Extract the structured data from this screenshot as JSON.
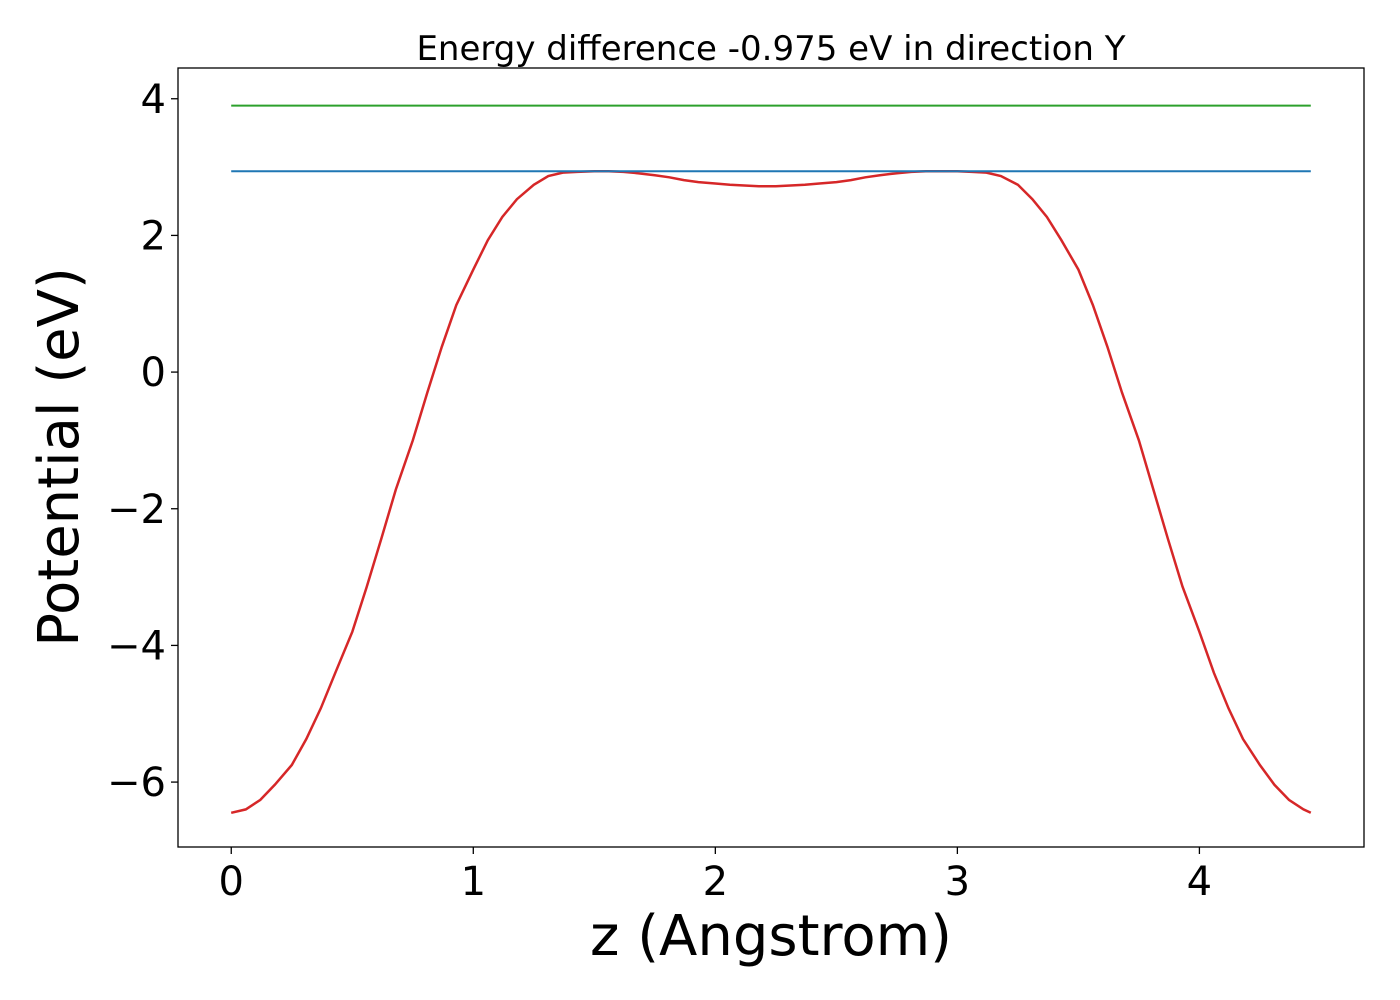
{
  "chart_data": {
    "type": "line",
    "title": "Energy difference -0.975 eV in direction Y",
    "xlabel": "z (Angstrom)",
    "ylabel": "Potential (eV)",
    "xlim": [
      -0.22,
      4.68
    ],
    "ylim": [
      -6.95,
      4.45
    ],
    "xticks": [
      0,
      1,
      2,
      3,
      4
    ],
    "xtick_labels": [
      "0",
      "1",
      "2",
      "3",
      "4"
    ],
    "yticks": [
      -6,
      -4,
      -2,
      0,
      2,
      4
    ],
    "ytick_labels": [
      "−6",
      "−4",
      "−2",
      "0",
      "2",
      "4"
    ],
    "grid": false,
    "legend": "none",
    "series": [
      {
        "color": "#d62728",
        "x": [
          0.0,
          0.06,
          0.12,
          0.18,
          0.25,
          0.31,
          0.37,
          0.43,
          0.5,
          0.56,
          0.62,
          0.68,
          0.75,
          0.81,
          0.87,
          0.93,
          1.0,
          1.06,
          1.12,
          1.18,
          1.25,
          1.31,
          1.37,
          1.43,
          1.5,
          1.56,
          1.62,
          1.68,
          1.75,
          1.81,
          1.87,
          1.93,
          2.0,
          2.06,
          2.12,
          2.18,
          2.25,
          2.31,
          2.37,
          2.43,
          2.5,
          2.56,
          2.62,
          2.68,
          2.75,
          2.81,
          2.87,
          2.93,
          3.0,
          3.06,
          3.12,
          3.18,
          3.25,
          3.31,
          3.37,
          3.43,
          3.5,
          3.56,
          3.62,
          3.68,
          3.75,
          3.81,
          3.87,
          3.93,
          4.0,
          4.06,
          4.12,
          4.18,
          4.25,
          4.31,
          4.37,
          4.43,
          4.46
        ],
        "y": [
          -6.45,
          -6.4,
          -6.26,
          -6.04,
          -5.75,
          -5.37,
          -4.92,
          -4.4,
          -3.8,
          -3.14,
          -2.44,
          -1.72,
          -1.0,
          -0.3,
          0.37,
          0.98,
          1.5,
          1.93,
          2.27,
          2.53,
          2.74,
          2.87,
          2.92,
          2.93,
          2.94,
          2.94,
          2.93,
          2.91,
          2.88,
          2.85,
          2.81,
          2.78,
          2.76,
          2.74,
          2.73,
          2.72,
          2.72,
          2.73,
          2.74,
          2.76,
          2.78,
          2.81,
          2.85,
          2.88,
          2.91,
          2.93,
          2.94,
          2.94,
          2.94,
          2.93,
          2.92,
          2.87,
          2.74,
          2.53,
          2.27,
          1.93,
          1.5,
          0.98,
          0.37,
          -0.3,
          -1.0,
          -1.72,
          -2.44,
          -3.14,
          -3.8,
          -4.4,
          -4.92,
          -5.37,
          -5.75,
          -6.04,
          -6.26,
          -6.4,
          -6.45
        ]
      },
      {
        "color": "#1f77b4",
        "x": [
          0.0,
          4.46
        ],
        "y": [
          2.94,
          2.94
        ]
      },
      {
        "color": "#2ca02c",
        "x": [
          0.0,
          4.46
        ],
        "y": [
          3.9,
          3.9
        ]
      }
    ]
  }
}
